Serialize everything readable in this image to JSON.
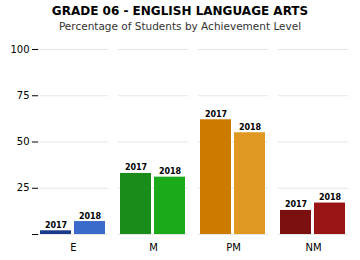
{
  "chart_data": {
    "type": "bar",
    "title": "GRADE 06 - ENGLISH LANGUAGE ARTS",
    "subtitle": "Percentage of Students by Achievement Level",
    "categories": [
      "E",
      "M",
      "PM",
      "NM"
    ],
    "series": [
      {
        "name": "2017",
        "colors": [
          "#1a3a8a",
          "#1a8c1a",
          "#cc7a00",
          "#7a1010"
        ],
        "values": [
          2,
          33,
          62,
          13
        ]
      },
      {
        "name": "2018",
        "colors": [
          "#3a6acc",
          "#1aaa1a",
          "#e09820",
          "#991515"
        ],
        "values": [
          7,
          31,
          55,
          17
        ]
      }
    ],
    "ylim": [
      0,
      100
    ],
    "yticks": [
      {
        "value": 0,
        "label": null
      },
      25,
      50,
      75,
      100
    ],
    "grid": true
  }
}
